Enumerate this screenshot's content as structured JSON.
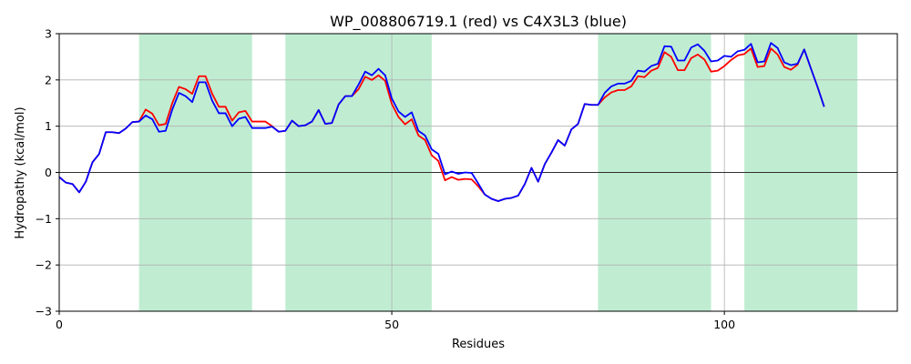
{
  "chart_data": {
    "type": "line",
    "title": "WP_008806719.1 (red) vs C4X3L3 (blue)",
    "xlabel": "Residues",
    "ylabel": "Hydropathy (kcal/mol)",
    "xlim": [
      0,
      126
    ],
    "ylim": [
      -3,
      3
    ],
    "xticks": [
      0,
      50,
      100
    ],
    "yticks": [
      -3,
      -2,
      -1,
      0,
      1,
      2,
      3
    ],
    "grid": true,
    "zero_line": true,
    "highlight_color": "#c0edd2",
    "highlight_regions": [
      [
        12,
        29
      ],
      [
        34,
        56
      ],
      [
        81,
        98
      ],
      [
        103,
        120
      ]
    ],
    "series": [
      {
        "name": "WP_008806719.1",
        "color": "#ff0000",
        "x": [
          0,
          1,
          2,
          3,
          4,
          5,
          6,
          7,
          8,
          9,
          10,
          11,
          12,
          13,
          14,
          15,
          16,
          17,
          18,
          19,
          20,
          21,
          22,
          23,
          24,
          25,
          26,
          27,
          28,
          29,
          30,
          31,
          32,
          33,
          34,
          35,
          36,
          37,
          38,
          39,
          40,
          41,
          42,
          43,
          44,
          45,
          46,
          47,
          48,
          49,
          50,
          51,
          52,
          53,
          54,
          55,
          56,
          57,
          58,
          59,
          60,
          61,
          62,
          63,
          64,
          65,
          66,
          67,
          68,
          69,
          70,
          71,
          72,
          73,
          74,
          75,
          76,
          77,
          78,
          79,
          80,
          81,
          82,
          83,
          84,
          85,
          86,
          87,
          88,
          89,
          90,
          91,
          92,
          93,
          94,
          95,
          96,
          97,
          98,
          99,
          100,
          101,
          102,
          103,
          104,
          105,
          106,
          107,
          108,
          109,
          110,
          111,
          112,
          113,
          114,
          115
        ],
        "values": [
          -0.1,
          -0.22,
          -0.25,
          -0.43,
          -0.2,
          0.22,
          0.4,
          0.87,
          0.87,
          0.85,
          0.95,
          1.09,
          1.1,
          1.36,
          1.27,
          1.02,
          1.05,
          1.5,
          1.85,
          1.8,
          1.7,
          2.08,
          2.08,
          1.7,
          1.42,
          1.42,
          1.12,
          1.3,
          1.33,
          1.1,
          1.1,
          1.1,
          1.0,
          0.88,
          0.9,
          1.12,
          1.0,
          1.02,
          1.1,
          1.35,
          1.05,
          1.07,
          1.47,
          1.65,
          1.65,
          1.8,
          2.07,
          2.0,
          2.1,
          1.98,
          1.48,
          1.2,
          1.04,
          1.15,
          0.8,
          0.7,
          0.37,
          0.25,
          -0.17,
          -0.1,
          -0.16,
          -0.14,
          -0.15,
          -0.3,
          -0.48,
          -0.57,
          -0.62,
          -0.57,
          -0.55,
          -0.5,
          -0.25,
          0.1,
          -0.2,
          0.18,
          0.43,
          0.7,
          0.58,
          0.93,
          1.05,
          1.48,
          1.46,
          1.46,
          1.62,
          1.73,
          1.78,
          1.78,
          1.86,
          2.08,
          2.06,
          2.2,
          2.26,
          2.6,
          2.5,
          2.21,
          2.21,
          2.47,
          2.55,
          2.44,
          2.18,
          2.2,
          2.3,
          2.43,
          2.53,
          2.56,
          2.68,
          2.28,
          2.3,
          2.68,
          2.55,
          2.28,
          2.22,
          2.33,
          2.66,
          2.25,
          1.85,
          1.42
        ]
      },
      {
        "name": "C4X3L3",
        "color": "#0000ff",
        "x": [
          0,
          1,
          2,
          3,
          4,
          5,
          6,
          7,
          8,
          9,
          10,
          11,
          12,
          13,
          14,
          15,
          16,
          17,
          18,
          19,
          20,
          21,
          22,
          23,
          24,
          25,
          26,
          27,
          28,
          29,
          30,
          31,
          32,
          33,
          34,
          35,
          36,
          37,
          38,
          39,
          40,
          41,
          42,
          43,
          44,
          45,
          46,
          47,
          48,
          49,
          50,
          51,
          52,
          53,
          54,
          55,
          56,
          57,
          58,
          59,
          60,
          61,
          62,
          63,
          64,
          65,
          66,
          67,
          68,
          69,
          70,
          71,
          72,
          73,
          74,
          75,
          76,
          77,
          78,
          79,
          80,
          81,
          82,
          83,
          84,
          85,
          86,
          87,
          88,
          89,
          90,
          91,
          92,
          93,
          94,
          95,
          96,
          97,
          98,
          99,
          100,
          101,
          102,
          103,
          104,
          105,
          106,
          107,
          108,
          109,
          110,
          111,
          112,
          113,
          114,
          115
        ],
        "values": [
          -0.1,
          -0.22,
          -0.25,
          -0.43,
          -0.2,
          0.22,
          0.4,
          0.87,
          0.87,
          0.85,
          0.95,
          1.09,
          1.1,
          1.23,
          1.15,
          0.88,
          0.9,
          1.36,
          1.72,
          1.65,
          1.52,
          1.95,
          1.95,
          1.55,
          1.28,
          1.28,
          1.0,
          1.16,
          1.2,
          0.96,
          0.96,
          0.96,
          0.99,
          0.88,
          0.9,
          1.12,
          1.0,
          1.02,
          1.1,
          1.35,
          1.05,
          1.07,
          1.47,
          1.65,
          1.65,
          1.9,
          2.18,
          2.1,
          2.24,
          2.1,
          1.6,
          1.32,
          1.2,
          1.3,
          0.9,
          0.8,
          0.5,
          0.4,
          -0.04,
          0.02,
          -0.03,
          0.0,
          -0.01,
          -0.24,
          -0.48,
          -0.57,
          -0.62,
          -0.57,
          -0.55,
          -0.5,
          -0.25,
          0.1,
          -0.2,
          0.18,
          0.43,
          0.7,
          0.58,
          0.93,
          1.05,
          1.48,
          1.46,
          1.46,
          1.72,
          1.86,
          1.92,
          1.92,
          1.98,
          2.2,
          2.18,
          2.3,
          2.35,
          2.73,
          2.72,
          2.42,
          2.42,
          2.7,
          2.77,
          2.63,
          2.4,
          2.42,
          2.52,
          2.5,
          2.62,
          2.65,
          2.78,
          2.38,
          2.4,
          2.8,
          2.69,
          2.38,
          2.32,
          2.35,
          2.66,
          2.25,
          1.85,
          1.42
        ]
      }
    ]
  }
}
